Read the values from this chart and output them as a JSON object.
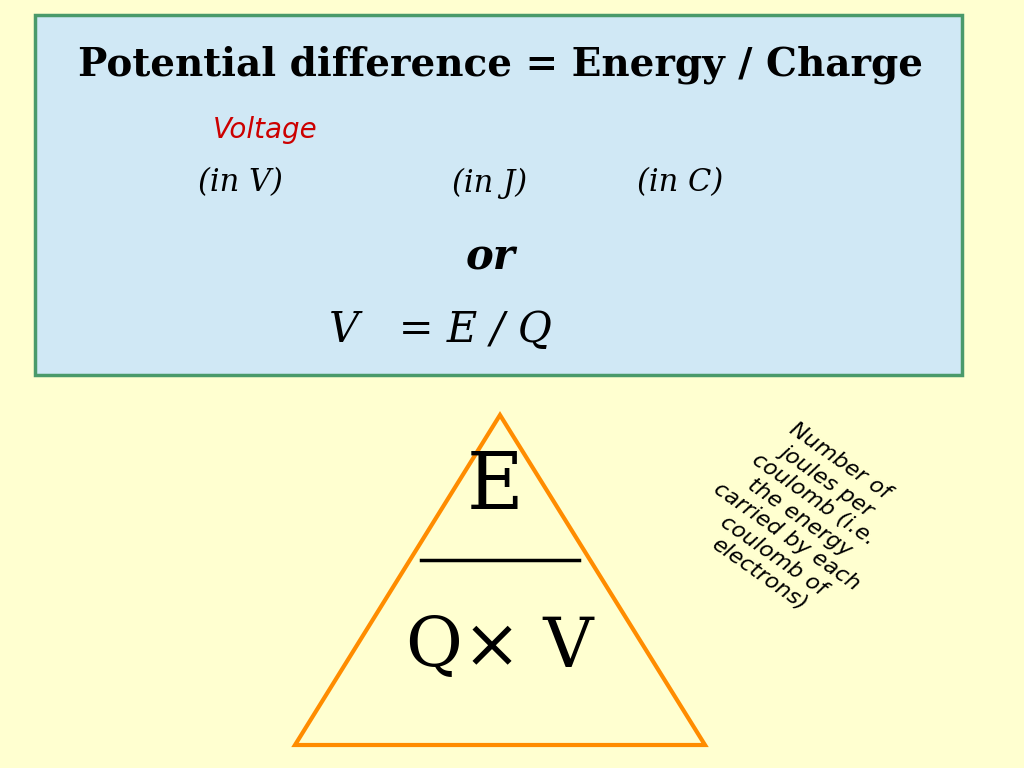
{
  "bg_color": "#FFFFD0",
  "box_bg_color": "#D0E8F5",
  "box_border_color": "#4A9A6A",
  "title_text": "Potential difference = Energy / Charge",
  "title_fontsize": 28,
  "voltage_text": "Voltage",
  "voltage_color": "#CC0000",
  "voltage_fontsize": 20,
  "in_v_text": "(in V)",
  "in_j_text": "(in J)",
  "in_c_text": "(in C)",
  "units_fontsize": 22,
  "or_text": "or",
  "or_fontsize": 30,
  "formula_text": "V   = E / Q",
  "formula_fontsize": 30,
  "triangle_color": "#FF8C00",
  "triangle_lw": 3.0,
  "E_text": "E",
  "E_fontsize": 56,
  "QV_text": "Q× V",
  "QV_fontsize": 50,
  "annotation_text": "Number of\njoules per\ncoulomb (i.e.\nthe energy\ncarried by each\ncoulomb of\nelectrons)",
  "annotation_fontsize": 16,
  "annotation_rotation": -35
}
